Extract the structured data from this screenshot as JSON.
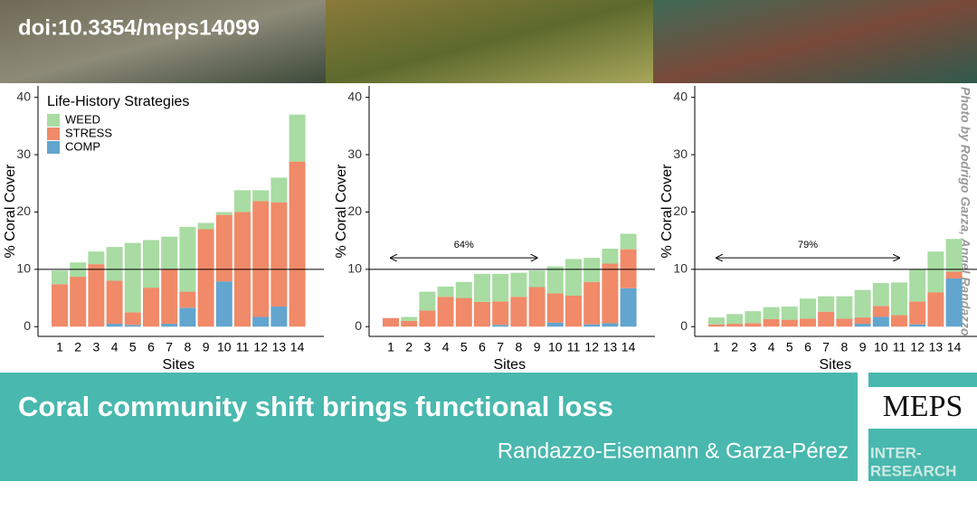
{
  "header": {
    "doi": "doi:10.3354/meps14099"
  },
  "photo_credit": "Photo by Rodrigo Garza, Angel Randazzo",
  "chart_data": [
    {
      "type": "bar",
      "stacked": true,
      "y_label": "% Coral Cover",
      "x_label": "Sites",
      "legend": true,
      "legend_title": "Life-History Strategies",
      "categories": [
        "1",
        "2",
        "3",
        "4",
        "5",
        "6",
        "7",
        "8",
        "9",
        "10",
        "11",
        "12",
        "13",
        "14"
      ],
      "series": [
        {
          "name": "COMP",
          "color": "#62a5cf",
          "values": [
            0,
            0,
            0,
            0.5,
            0.3,
            0,
            0.5,
            3.3,
            0,
            7.9,
            0,
            1.7,
            3.5,
            0
          ]
        },
        {
          "name": "STRESS",
          "color": "#f08a68",
          "values": [
            7.4,
            8.7,
            10.9,
            7.5,
            2.2,
            6.8,
            9.6,
            2.8,
            17.0,
            11.6,
            20.0,
            20.2,
            18.2,
            28.8
          ]
        },
        {
          "name": "WEED",
          "color": "#a8dca2",
          "values": [
            2.4,
            2.5,
            2.2,
            5.9,
            12.1,
            8.3,
            5.6,
            11.3,
            1.1,
            0.5,
            3.8,
            1.9,
            4.3,
            8.2
          ]
        }
      ],
      "ylim": [
        -1.7,
        42
      ],
      "yticks": [
        0,
        10,
        20,
        30,
        40
      ],
      "hline": 10
    },
    {
      "type": "bar",
      "stacked": true,
      "y_label": "% Coral Cover",
      "x_label": "Sites",
      "categories": [
        "1",
        "2",
        "3",
        "4",
        "5",
        "6",
        "7",
        "8",
        "9",
        "10",
        "11",
        "12",
        "13",
        "14"
      ],
      "series": [
        {
          "name": "COMP",
          "color": "#62a5cf",
          "values": [
            0,
            0,
            0,
            0,
            0,
            0,
            0.3,
            0,
            0,
            0.7,
            0,
            0.4,
            0.6,
            6.7
          ]
        },
        {
          "name": "STRESS",
          "color": "#f08a68",
          "values": [
            1.5,
            1.0,
            2.8,
            5.2,
            5.0,
            4.3,
            4.1,
            5.2,
            6.9,
            5.1,
            5.4,
            7.4,
            10.4,
            6.8
          ]
        },
        {
          "name": "WEED",
          "color": "#a8dca2",
          "values": [
            0,
            0.7,
            3.3,
            1.8,
            2.8,
            4.9,
            4.8,
            4.2,
            2.9,
            4.7,
            6.4,
            4.2,
            2.6,
            2.7
          ]
        }
      ],
      "ylim": [
        -1.7,
        42
      ],
      "yticks": [
        0,
        10,
        20,
        30,
        40
      ],
      "hline": 10,
      "annotation": {
        "text": "64%",
        "from": "1",
        "to": "9",
        "y": 12
      }
    },
    {
      "type": "bar",
      "stacked": true,
      "y_label": "% Coral Cover",
      "x_label": "Sites",
      "categories": [
        "1",
        "2",
        "3",
        "4",
        "5",
        "6",
        "7",
        "8",
        "9",
        "10",
        "11",
        "12",
        "13",
        "14"
      ],
      "series": [
        {
          "name": "COMP",
          "color": "#62a5cf",
          "values": [
            0,
            0,
            0,
            0,
            0,
            0,
            0,
            0,
            0.5,
            1.7,
            0,
            0.4,
            0,
            8.4
          ]
        },
        {
          "name": "STRESS",
          "color": "#f08a68",
          "values": [
            0.4,
            0.5,
            0.6,
            1.3,
            1.2,
            1.4,
            2.6,
            1.4,
            1.1,
            1.9,
            2.0,
            4.0,
            6.0,
            1.2
          ]
        },
        {
          "name": "WEED",
          "color": "#a8dca2",
          "values": [
            1.2,
            1.7,
            2.1,
            2.1,
            2.3,
            3.5,
            2.7,
            3.9,
            4.8,
            4.0,
            5.7,
            5.6,
            7.1,
            5.7
          ]
        }
      ],
      "ylim": [
        -1.7,
        42
      ],
      "yticks": [
        0,
        10,
        20,
        30,
        40
      ],
      "hline": 10,
      "annotation": {
        "text": "79%",
        "from": "1",
        "to": "11",
        "y": 12
      }
    }
  ],
  "footer": {
    "title": "Coral community shift brings functional loss",
    "authors": "Randazzo-Eisemann & Garza-Pérez",
    "journal": "MEPS",
    "publisher": [
      "INTER-",
      "RESEARCH"
    ]
  }
}
